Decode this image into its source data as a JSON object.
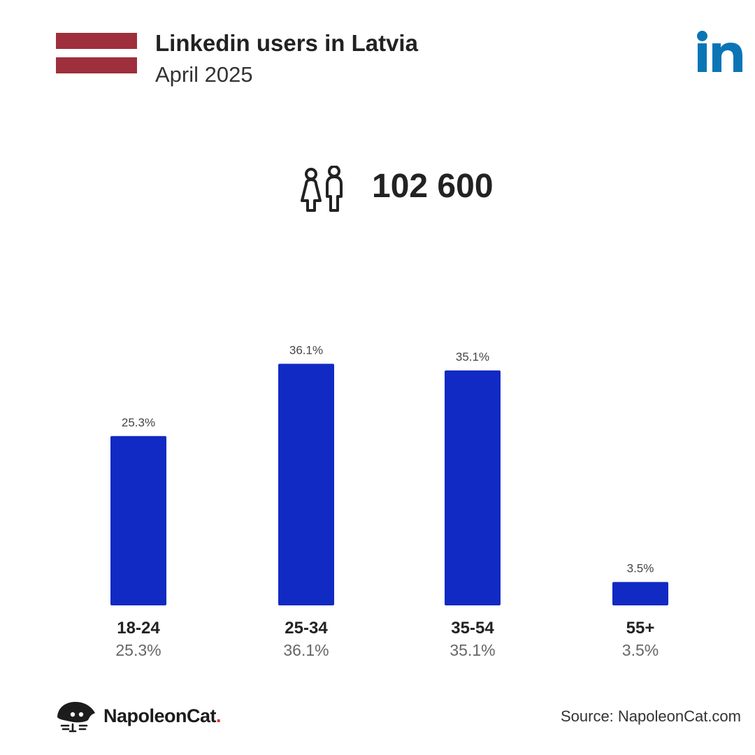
{
  "header": {
    "title": "Linkedin users in Latvia",
    "date": "April 2025",
    "logo_icon": "linkedin-icon",
    "flag_icon": "latvia-flag-icon"
  },
  "total": {
    "icon": "people-icon",
    "value": "102 600"
  },
  "chart_data": {
    "type": "bar",
    "categories": [
      "18-24",
      "25-34",
      "35-54",
      "55+"
    ],
    "values": [
      25.3,
      36.1,
      35.1,
      3.5
    ],
    "value_labels": [
      "25.3%",
      "36.1%",
      "35.1%",
      "3.5%"
    ],
    "ylim": [
      0,
      40
    ],
    "grid": false,
    "xlabel": "",
    "ylabel": ""
  },
  "footer": {
    "brand_name": "NapoleonCat",
    "brand_dot": ".",
    "source": "Source: NapoleonCat.com"
  },
  "colors": {
    "bar": "#102ac3",
    "flag": "#9e2f3c",
    "linkedin": "#0a75b5",
    "text": "#222222",
    "muted": "#666666"
  }
}
